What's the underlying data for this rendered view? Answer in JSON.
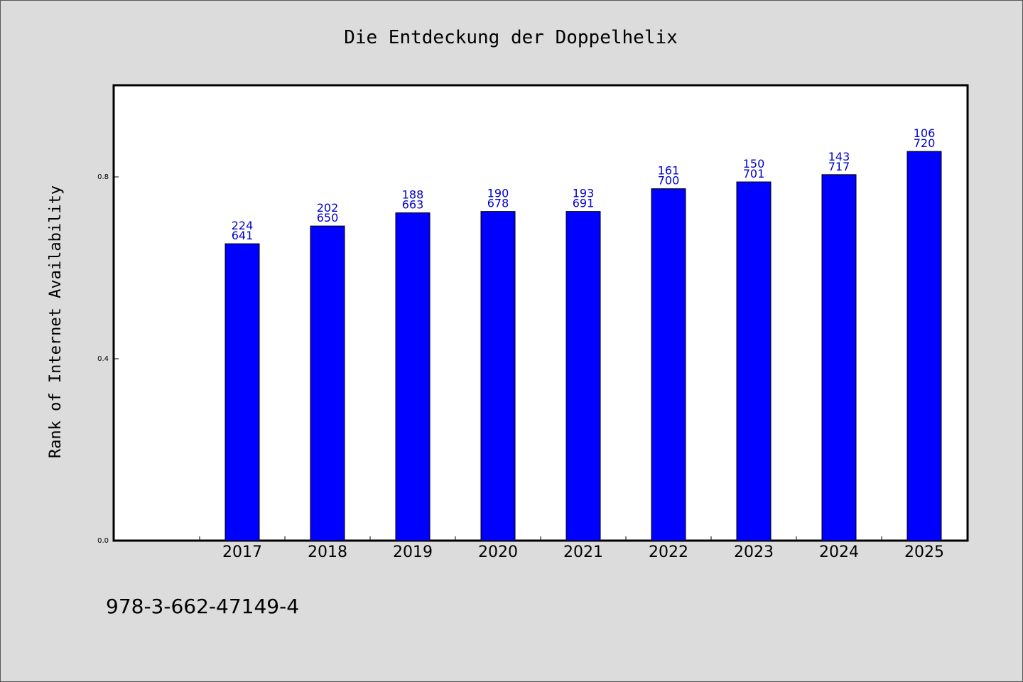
{
  "colors": {
    "bar": "#0000ff",
    "label": "#0000cc",
    "plot_bg": "#ffffff",
    "page_bg": "#dcdcdc"
  },
  "footer": {
    "isbn": "978-3-662-47149-4"
  },
  "chart_data": {
    "type": "bar",
    "title": "Die Entdeckung der Doppelhelix",
    "xlabel": "",
    "ylabel": "Rank of Internet Availability",
    "ylim": [
      0,
      1.0
    ],
    "yticks": [
      "0.0",
      "0.4",
      "0.8"
    ],
    "grid": false,
    "categories": [
      "2017",
      "2018",
      "2019",
      "2020",
      "2021",
      "2022",
      "2023",
      "2024",
      "2025"
    ],
    "values": [
      0.653,
      0.692,
      0.721,
      0.724,
      0.724,
      0.774,
      0.789,
      0.805,
      0.856
    ],
    "labels_top": [
      "224",
      "202",
      "188",
      "190",
      "193",
      "161",
      "150",
      "143",
      "106"
    ],
    "labels_bottom": [
      "641",
      "650",
      "663",
      "678",
      "691",
      "700",
      "701",
      "717",
      "720"
    ]
  }
}
